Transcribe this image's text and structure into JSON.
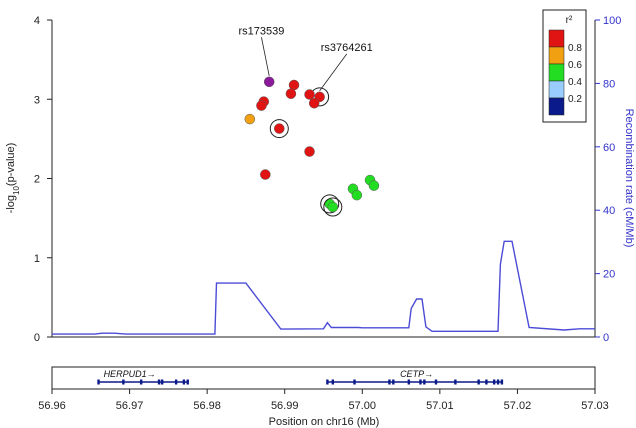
{
  "chart_data": {
    "type": "scatter",
    "xlabel": "Position on chr16 (Mb)",
    "ylabel": "-log10(p-value)",
    "ylabel_main": "-log",
    "ylabel_sub": "10",
    "ylabel_rest": "(p-value)",
    "y2label": "Recombination rate (cM/Mb)",
    "xlim": [
      56.96,
      57.03
    ],
    "ylim": [
      0,
      4
    ],
    "y2lim": [
      0,
      100
    ],
    "x_ticks": [
      "56.96",
      "56.97",
      "56.98",
      "56.99",
      "57.00",
      "57.01",
      "57.02",
      "57.03"
    ],
    "x_tick_values": [
      56.96,
      56.97,
      56.98,
      56.99,
      57.0,
      57.01,
      57.02,
      57.03
    ],
    "y_ticks": [
      "0",
      "1",
      "2",
      "3",
      "4"
    ],
    "y_tick_values": [
      0,
      1,
      2,
      3,
      4
    ],
    "y2_ticks": [
      "0",
      "20",
      "40",
      "60",
      "80",
      "100"
    ],
    "y2_tick_values": [
      0,
      20,
      40,
      60,
      80,
      100
    ],
    "points": [
      {
        "x": 56.988,
        "y": 3.22,
        "color": "#8a1a9a",
        "circled": false
      },
      {
        "x": 56.9945,
        "y": 3.03,
        "color": "#e11414",
        "circled": true
      },
      {
        "x": 56.9912,
        "y": 3.18,
        "color": "#e11414",
        "circled": false
      },
      {
        "x": 56.9908,
        "y": 3.07,
        "color": "#e11414",
        "circled": false
      },
      {
        "x": 56.9932,
        "y": 3.06,
        "color": "#e11414",
        "circled": false
      },
      {
        "x": 56.9938,
        "y": 2.95,
        "color": "#e11414",
        "circled": false
      },
      {
        "x": 56.9873,
        "y": 2.97,
        "color": "#e11414",
        "circled": false
      },
      {
        "x": 56.987,
        "y": 2.92,
        "color": "#e11414",
        "circled": false
      },
      {
        "x": 56.9855,
        "y": 2.75,
        "color": "#f0a010",
        "circled": false
      },
      {
        "x": 56.9893,
        "y": 2.63,
        "color": "#e11414",
        "circled": true
      },
      {
        "x": 56.9932,
        "y": 2.34,
        "color": "#e11414",
        "circled": false
      },
      {
        "x": 56.9875,
        "y": 2.05,
        "color": "#e11414",
        "circled": false
      },
      {
        "x": 57.001,
        "y": 1.98,
        "color": "#22dd22",
        "circled": false
      },
      {
        "x": 57.0015,
        "y": 1.91,
        "color": "#22dd22",
        "circled": false
      },
      {
        "x": 56.9988,
        "y": 1.87,
        "color": "#22dd22",
        "circled": false
      },
      {
        "x": 56.9993,
        "y": 1.79,
        "color": "#22dd22",
        "circled": false
      },
      {
        "x": 56.9958,
        "y": 1.68,
        "color": "#22dd22",
        "circled": true
      },
      {
        "x": 56.9962,
        "y": 1.64,
        "color": "#22dd22",
        "circled": true
      }
    ],
    "annotations": [
      {
        "label": "rs173539",
        "x": 56.988,
        "y": 3.22,
        "label_x": 56.987,
        "label_y": 3.82
      },
      {
        "label": "rs3764261",
        "x": 56.9945,
        "y": 3.03,
        "label_x": 56.998,
        "label_y": 3.61
      }
    ],
    "recombination": [
      [
        56.96,
        0.9
      ],
      [
        56.9655,
        0.9
      ],
      [
        56.9665,
        1.2
      ],
      [
        56.968,
        1.2
      ],
      [
        56.9695,
        0.9
      ],
      [
        56.981,
        0.9
      ],
      [
        56.9812,
        17.0
      ],
      [
        56.985,
        17.0
      ],
      [
        56.9895,
        2.5
      ],
      [
        56.995,
        2.6
      ],
      [
        56.9955,
        4.5
      ],
      [
        56.996,
        3.0
      ],
      [
        56.9995,
        3.0
      ],
      [
        57.0,
        2.9
      ],
      [
        57.006,
        2.9
      ],
      [
        57.0063,
        9.0
      ],
      [
        57.007,
        12.0
      ],
      [
        57.0077,
        12.0
      ],
      [
        57.0082,
        3.2
      ],
      [
        57.009,
        1.8
      ],
      [
        57.0175,
        1.8
      ],
      [
        57.0178,
        23.0
      ],
      [
        57.0183,
        30.2
      ],
      [
        57.0193,
        30.2
      ],
      [
        57.0215,
        3.0
      ],
      [
        57.026,
        2.2
      ],
      [
        57.028,
        2.6
      ],
      [
        57.03,
        2.6
      ]
    ],
    "legend": {
      "title": "r²",
      "labels": [
        "0.8",
        "0.6",
        "0.4",
        "0.2"
      ],
      "colors": [
        "#e11414",
        "#f0a010",
        "#22dd22",
        "#99ccff",
        "#0b1a8a"
      ]
    },
    "genes": [
      {
        "name": "HERPUD1→",
        "start": 56.966,
        "end": 56.9775,
        "label_x": 56.97,
        "exons": [
          56.966,
          56.9692,
          56.9715,
          56.9738,
          56.9742,
          56.976,
          56.977,
          56.9775
        ]
      },
      {
        "name": "CETP→",
        "start": 56.9955,
        "end": 57.018,
        "label_x": 57.007,
        "exons": [
          56.9955,
          56.9962,
          56.999,
          57.0035,
          57.004,
          57.006,
          57.0075,
          57.008,
          57.0095,
          57.012,
          57.015,
          57.016,
          57.017,
          57.0175,
          57.018
        ]
      }
    ]
  }
}
